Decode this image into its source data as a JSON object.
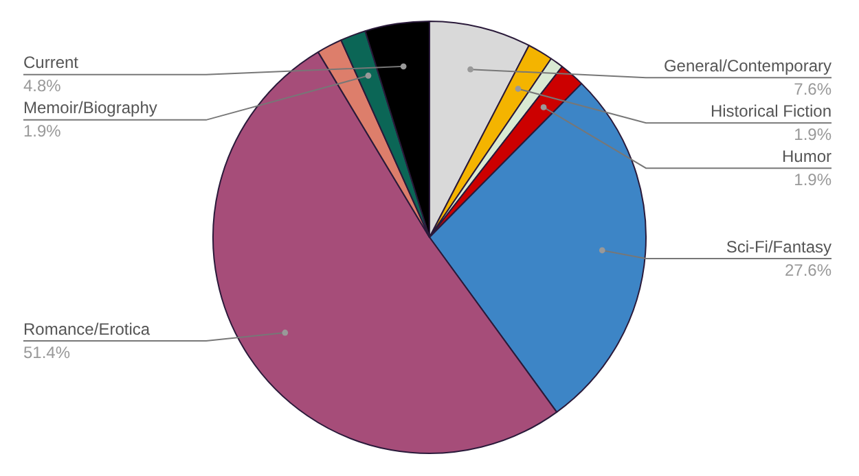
{
  "chart_data": {
    "type": "pie",
    "categories": [
      "General/Contemporary",
      "Historical Fiction",
      null,
      "Humor",
      "Sci-Fi/Fantasy",
      "Romance/Erotica",
      null,
      "Memoir/Biography",
      "Current"
    ],
    "values": [
      7.6,
      1.9,
      1.0,
      1.9,
      27.6,
      51.4,
      1.9,
      1.9,
      4.8
    ],
    "colors": [
      "#d9d9d9",
      "#f4b400",
      "#d9ead3",
      "#cc0000",
      "#3d85c6",
      "#a64d79",
      "#dd7e6b",
      "#0b6656",
      "#000000"
    ],
    "value_labels": [
      "7.6%",
      "1.9%",
      null,
      "1.9%",
      "27.6%",
      "51.4%",
      null,
      "1.9%",
      "4.8%"
    ],
    "legend": false
  }
}
